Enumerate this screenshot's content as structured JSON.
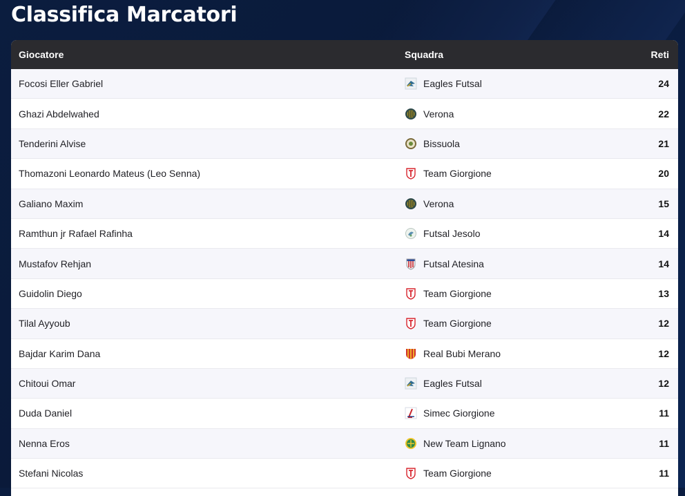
{
  "page": {
    "title": "Classifica Marcatori"
  },
  "table": {
    "headers": {
      "player": "Giocatore",
      "team": "Squadra",
      "goals": "Reti"
    },
    "rows": [
      {
        "player": "Focosi Eller Gabriel",
        "team": "Eagles Futsal",
        "goals": "24",
        "logo": "eagles-logo"
      },
      {
        "player": "Ghazi Abdelwahed",
        "team": "Verona",
        "goals": "22",
        "logo": "verona-logo"
      },
      {
        "player": "Tenderini Alvise",
        "team": "Bissuola",
        "goals": "21",
        "logo": "bissuola-logo"
      },
      {
        "player": "Thomazoni Leonardo Mateus (Leo Senna)",
        "team": "Team Giorgione",
        "goals": "20",
        "logo": "giorgione-logo"
      },
      {
        "player": "Galiano Maxim",
        "team": "Verona",
        "goals": "15",
        "logo": "verona-logo"
      },
      {
        "player": "Ramthun jr Rafael Rafinha",
        "team": "Futsal Jesolo",
        "goals": "14",
        "logo": "jesolo-logo"
      },
      {
        "player": "Mustafov Rehjan",
        "team": "Futsal Atesina",
        "goals": "14",
        "logo": "atesina-logo"
      },
      {
        "player": "Guidolin Diego",
        "team": "Team Giorgione",
        "goals": "13",
        "logo": "giorgione-logo"
      },
      {
        "player": "Tilal Ayyoub",
        "team": "Team Giorgione",
        "goals": "12",
        "logo": "giorgione-logo"
      },
      {
        "player": "Bajdar Karim Dana",
        "team": "Real Bubi Merano",
        "goals": "12",
        "logo": "merano-logo"
      },
      {
        "player": "Chitoui Omar",
        "team": "Eagles Futsal",
        "goals": "12",
        "logo": "eagles-logo"
      },
      {
        "player": "Duda Daniel",
        "team": "Simec Giorgione",
        "goals": "11",
        "logo": "simec-logo"
      },
      {
        "player": "Nenna Eros",
        "team": "New Team Lignano",
        "goals": "11",
        "logo": "lignano-logo"
      },
      {
        "player": "Stefani Nicolas",
        "team": "Team Giorgione",
        "goals": "11",
        "logo": "giorgione-logo"
      }
    ]
  }
}
